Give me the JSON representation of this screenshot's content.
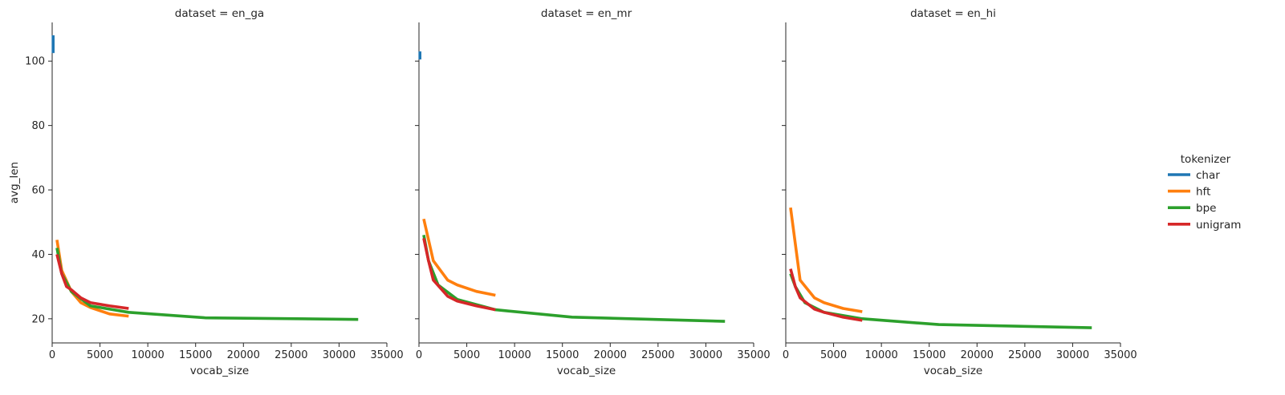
{
  "chart_data": {
    "type": "line",
    "xlabel": "vocab_size",
    "ylabel": "avg_len",
    "xlim": [
      0,
      35000
    ],
    "ylim": [
      12.5,
      112
    ],
    "xticks": [
      0,
      5000,
      10000,
      15000,
      20000,
      25000,
      30000,
      35000
    ],
    "yticks": [
      20,
      40,
      60,
      80,
      100
    ],
    "grid": false,
    "legend": {
      "title": "tokenizer",
      "position": "right",
      "entries": [
        "char",
        "hft",
        "bpe",
        "unigram"
      ]
    },
    "colors": {
      "char": "#1f77b4",
      "hft": "#ff7f0e",
      "bpe": "#2ca02c",
      "unigram": "#d62728"
    },
    "panels": [
      {
        "title": "dataset = en_ga",
        "series": [
          {
            "name": "char",
            "x": [
              100,
              100
            ],
            "y": [
              102.5,
              108
            ]
          },
          {
            "name": "hft",
            "x": [
              500,
              1000,
              2000,
              3000,
              4000,
              6000,
              8000
            ],
            "y": [
              44.5,
              35,
              28.5,
              25,
              23.5,
              21.5,
              20.8
            ]
          },
          {
            "name": "bpe",
            "x": [
              500,
              1000,
              2000,
              4000,
              8000,
              16000,
              32000
            ],
            "y": [
              42,
              34,
              28.5,
              24,
              22,
              20.3,
              19.8
            ]
          },
          {
            "name": "unigram",
            "x": [
              500,
              1000,
              1500,
              2000,
              3000,
              4000,
              6000,
              8000
            ],
            "y": [
              40,
              34,
              30,
              29,
              26.5,
              25,
              24,
              23.2
            ]
          }
        ]
      },
      {
        "title": "dataset = en_mr",
        "series": [
          {
            "name": "char",
            "x": [
              100,
              100
            ],
            "y": [
              100.5,
              103
            ]
          },
          {
            "name": "hft",
            "x": [
              500,
              1500,
              3000,
              4000,
              6000,
              8000
            ],
            "y": [
              51,
              38,
              32,
              30.5,
              28.5,
              27.3
            ]
          },
          {
            "name": "bpe",
            "x": [
              500,
              1000,
              2000,
              4000,
              8000,
              16000,
              32000
            ],
            "y": [
              46,
              38,
              30.5,
              26,
              22.8,
              20.5,
              19.2
            ]
          },
          {
            "name": "unigram",
            "x": [
              500,
              1000,
              1500,
              3000,
              4000,
              6000,
              8000
            ],
            "y": [
              45,
              38,
              32,
              27,
              25.5,
              24,
              22.8
            ]
          }
        ]
      },
      {
        "title": "dataset = en_hi",
        "series": [
          {
            "name": "hft",
            "x": [
              500,
              1500,
              3000,
              4000,
              6000,
              8000
            ],
            "y": [
              54.5,
              32,
              26.5,
              25,
              23.2,
              22.2
            ]
          },
          {
            "name": "bpe",
            "x": [
              500,
              1000,
              2000,
              4000,
              8000,
              16000,
              32000
            ],
            "y": [
              34,
              30,
              25,
              22,
              20,
              18.2,
              17.2
            ]
          },
          {
            "name": "unigram",
            "x": [
              500,
              1000,
              1500,
              3000,
              4000,
              6000,
              8000
            ],
            "y": [
              35.5,
              30,
              26.5,
              23,
              22,
              20.5,
              19.5
            ]
          }
        ]
      }
    ]
  }
}
